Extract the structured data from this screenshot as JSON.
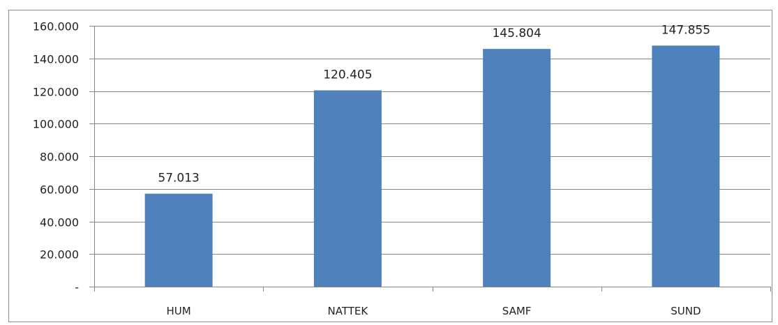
{
  "chart_data": {
    "type": "bar",
    "title": "",
    "xlabel": "",
    "ylabel": "",
    "categories": [
      "HUM",
      "NATTEK",
      "SAMF",
      "SUND"
    ],
    "values": [
      57013,
      120405,
      145804,
      147855
    ],
    "data_labels": [
      "57.013",
      "120.405",
      "145.804",
      "147.855"
    ],
    "ylim": [
      0,
      160000
    ],
    "yticks": [
      0,
      20000,
      40000,
      60000,
      80000,
      100000,
      120000,
      140000,
      160000
    ],
    "ytick_labels": [
      "-",
      "20.000",
      "40.000",
      "60.000",
      "80.000",
      "100.000",
      "120.000",
      "140.000",
      "160.000"
    ],
    "grid": true,
    "legend": "none",
    "colors": {
      "bar": "#4f81bd",
      "grid": "#868686",
      "axis": "#868686",
      "title": "#2e75b6"
    }
  }
}
